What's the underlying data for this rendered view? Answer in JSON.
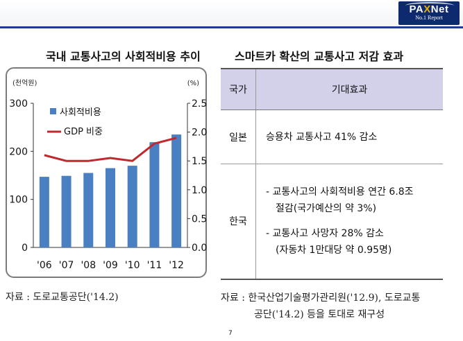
{
  "brand": {
    "name_pa": "PA",
    "name_x": "X",
    "name_net": "Net",
    "tagline": "No.1 Report"
  },
  "left": {
    "title": "국내 교통사고의 사회적비용 추이",
    "source": "자료 : 도로교통공단('14.2)"
  },
  "chart_data": {
    "type": "bar+line",
    "title": "국내 교통사고의 사회적비용 추이",
    "left_unit": "(천억원)",
    "right_unit": "(%)",
    "categories": [
      "'06",
      "'07",
      "'08",
      "'09",
      "'10",
      "'11",
      "'12"
    ],
    "series": [
      {
        "name": "사회적비용",
        "type": "bar",
        "axis": "left",
        "color": "#4a7fc1",
        "values": [
          147,
          149,
          155,
          165,
          170,
          219,
          235
        ]
      },
      {
        "name": "GDP 비중",
        "type": "line",
        "axis": "right",
        "color": "#c0282d",
        "values": [
          1.6,
          1.5,
          1.5,
          1.55,
          1.5,
          1.8,
          1.9
        ]
      }
    ],
    "left_ylim": [
      0,
      300
    ],
    "left_ticks": [
      "300",
      "200",
      "100",
      "0"
    ],
    "left_tick_values": [
      300,
      200,
      100,
      0
    ],
    "right_ylim": [
      0,
      2.5
    ],
    "right_ticks": [
      "2.5",
      "2.0",
      "1.5",
      "1.0",
      "0.5",
      "0.0"
    ],
    "right_tick_values": [
      2.5,
      2.0,
      1.5,
      1.0,
      0.5,
      0.0
    ],
    "legend_position": "top-left"
  },
  "right": {
    "title": "스마트카 확산의 교통사고 저감 효과",
    "headers": {
      "country": "국가",
      "effect": "기대효과"
    },
    "rows": {
      "japan": {
        "country": "일본",
        "effect": "승용차 교통사고 41% 감소"
      },
      "korea": {
        "country": "한국",
        "b1_l1": "- 교통사고의 사회적비용 연간 6.8조",
        "b1_l2": "절감(국가예산의 약 3%)",
        "b2_l1": "- 교통사고 사망자 28% 감소",
        "b2_l2": "(자동차 1만대당 약 0.95명)"
      }
    },
    "source_l1": "자료 : 한국산업기술평가관리원('12.9), 도로교통",
    "source_l2": "공단('14.2) 등을 토대로 재구성"
  },
  "page_number": "7"
}
